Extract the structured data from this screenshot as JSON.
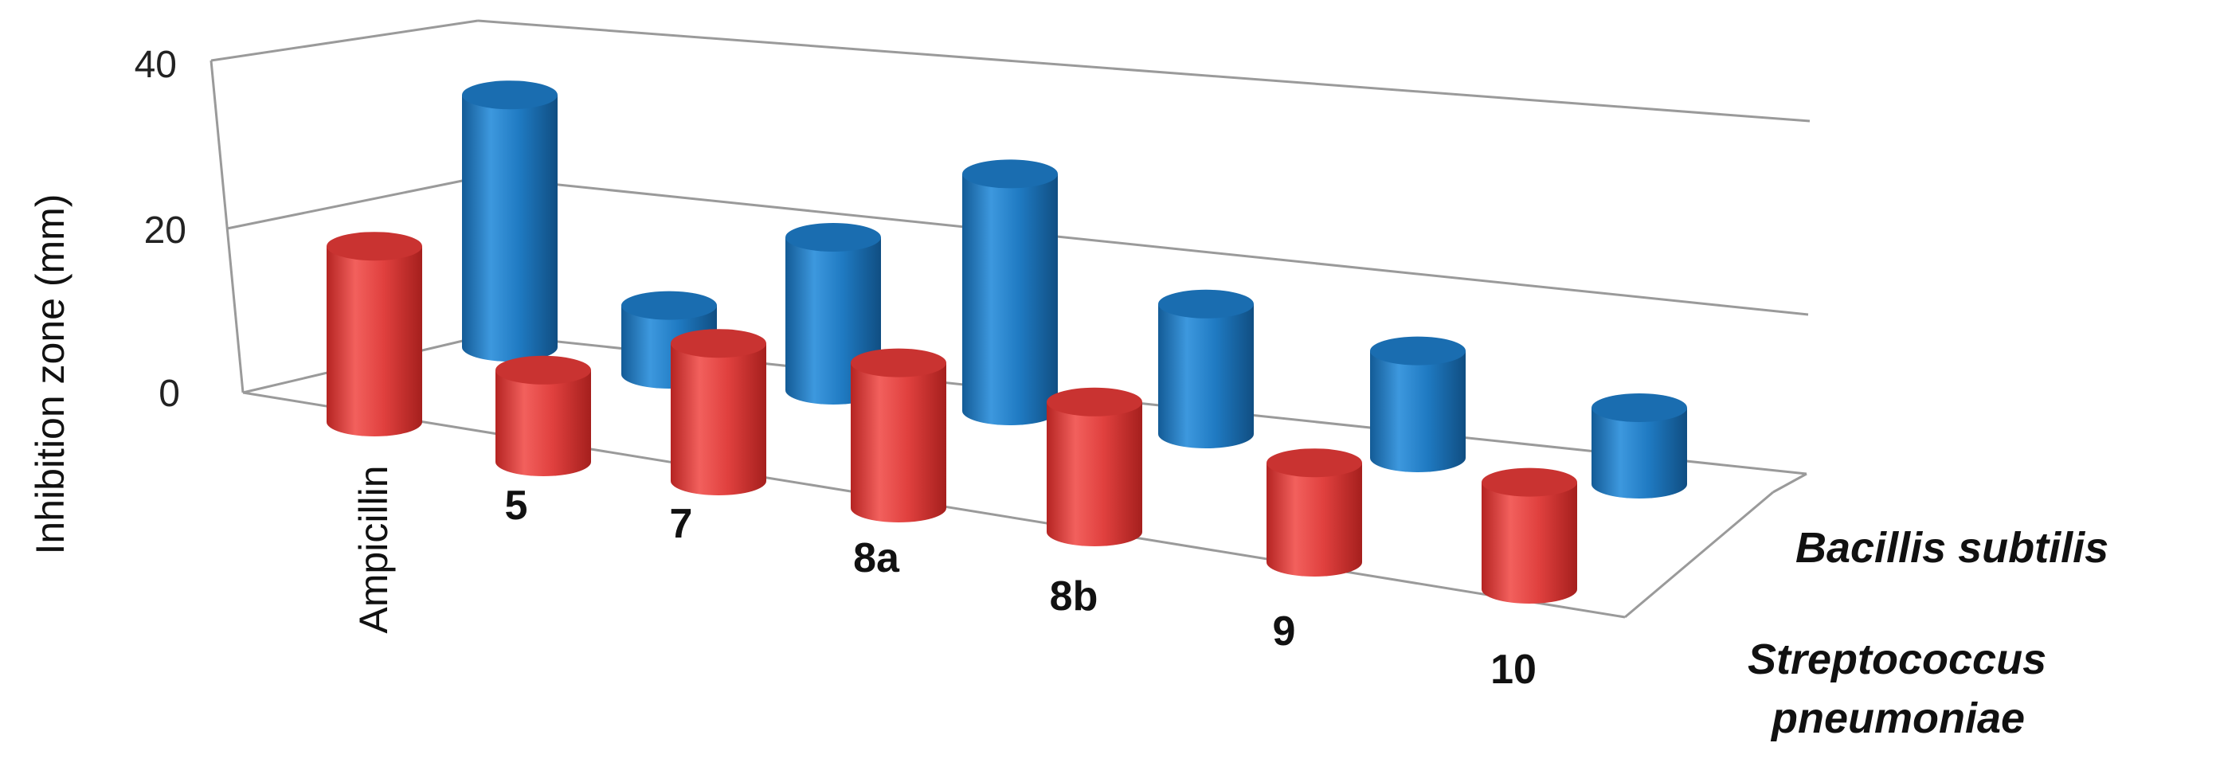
{
  "chart_data": {
    "type": "bar",
    "style": "3d-cylinder",
    "ylabel": "Inhibition zone (mm)",
    "ylim": [
      0,
      40
    ],
    "yticks": [
      "0",
      "20",
      "40"
    ],
    "categories": [
      "Ampicillin",
      "5",
      "7",
      "8a",
      "8b",
      "9",
      "10"
    ],
    "series": [
      {
        "name": "Bacillis subtilis",
        "color": "#1f7ac2",
        "values": [
          33,
          9,
          20,
          31,
          17,
          14,
          10
        ]
      },
      {
        "name": "Streptococcus pneumoniae",
        "color": "#e0403e",
        "values": [
          23,
          12,
          18,
          19,
          17,
          13,
          14
        ]
      }
    ],
    "grid": true,
    "legend": "depth-axis labels (right)"
  }
}
